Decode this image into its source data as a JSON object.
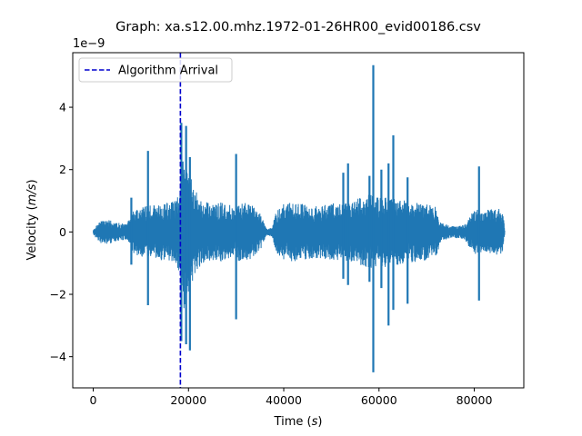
{
  "chart_data": {
    "type": "line",
    "title": "Graph: xa.s12.00.mhz.1972-01-26HR00_evid00186.csv",
    "xlabel_prefix": "Time (",
    "xlabel_unit": "s",
    "xlabel_suffix": ")",
    "ylabel_prefix": "Velocity (",
    "ylabel_unit": "m/s",
    "ylabel_suffix": ")",
    "y_offset_text": "1e−9",
    "xlim": [
      -4300,
      90400
    ],
    "ylim": [
      -5.0,
      5.75
    ],
    "x_ticks": [
      0,
      20000,
      40000,
      60000,
      80000
    ],
    "x_tick_labels": [
      "0",
      "20000",
      "40000",
      "60000",
      "80000"
    ],
    "y_ticks": [
      -4,
      -2,
      0,
      2,
      4
    ],
    "y_tick_labels": [
      "−4",
      "−2",
      "0",
      "2",
      "4"
    ],
    "grid": false,
    "legend_position": "top-left",
    "series": [
      {
        "name": "Velocity",
        "color": "#1f77b4",
        "x_start": 0,
        "x_end": 86400,
        "envelope_x": [
          0,
          1500,
          3000,
          5000,
          7000,
          8500,
          10000,
          12000,
          14000,
          16000,
          17500,
          18300,
          19000,
          20000,
          21000,
          22000,
          23000,
          25000,
          27000,
          29000,
          31000,
          33000,
          35000,
          36500,
          37500,
          38500,
          40000,
          42000,
          44000,
          46000,
          48000,
          50000,
          51000,
          52000,
          54000,
          56000,
          58000,
          60000,
          62000,
          64000,
          66000,
          68000,
          70000,
          72000,
          73000,
          75000,
          77000,
          78000,
          80000,
          82000,
          84000,
          86000,
          86400
        ],
        "envelope_amp": [
          0.1,
          0.35,
          0.4,
          0.3,
          0.25,
          0.7,
          0.8,
          0.85,
          0.9,
          0.95,
          1.0,
          1.5,
          2.6,
          2.0,
          1.5,
          1.2,
          1.0,
          0.9,
          0.95,
          0.85,
          0.95,
          0.9,
          0.6,
          0.1,
          0.15,
          0.7,
          0.9,
          0.95,
          0.9,
          0.85,
          0.85,
          0.9,
          0.95,
          0.9,
          0.95,
          1.1,
          1.2,
          1.1,
          1.15,
          1.05,
          1.0,
          0.95,
          0.9,
          0.8,
          0.3,
          0.2,
          0.2,
          0.25,
          0.75,
          0.65,
          0.8,
          0.7,
          0.05
        ],
        "spikes": [
          {
            "x": 8000,
            "top": 1.1,
            "bottom": -1.05
          },
          {
            "x": 11500,
            "top": 2.6,
            "bottom": -2.35
          },
          {
            "x": 18500,
            "top": 3.5,
            "bottom": -3.5
          },
          {
            "x": 19500,
            "top": 3.4,
            "bottom": -3.6
          },
          {
            "x": 20300,
            "top": 2.4,
            "bottom": -3.8
          },
          {
            "x": 30000,
            "top": 2.5,
            "bottom": -2.8
          },
          {
            "x": 52500,
            "top": 1.9,
            "bottom": -1.5
          },
          {
            "x": 53500,
            "top": 2.2,
            "bottom": -1.7
          },
          {
            "x": 58000,
            "top": 1.8,
            "bottom": -1.6
          },
          {
            "x": 58800,
            "top": 5.35,
            "bottom": -4.5
          },
          {
            "x": 60500,
            "top": 2.0,
            "bottom": -1.8
          },
          {
            "x": 62000,
            "top": 2.2,
            "bottom": -3.0
          },
          {
            "x": 63000,
            "top": 3.1,
            "bottom": -2.5
          },
          {
            "x": 66000,
            "top": 1.75,
            "bottom": -2.3
          },
          {
            "x": 81000,
            "top": 2.1,
            "bottom": -2.2
          }
        ]
      }
    ],
    "arrival": {
      "label": "Algorithm Arrival",
      "x": 18300,
      "color": "#0000cd",
      "style": "dashed"
    }
  }
}
